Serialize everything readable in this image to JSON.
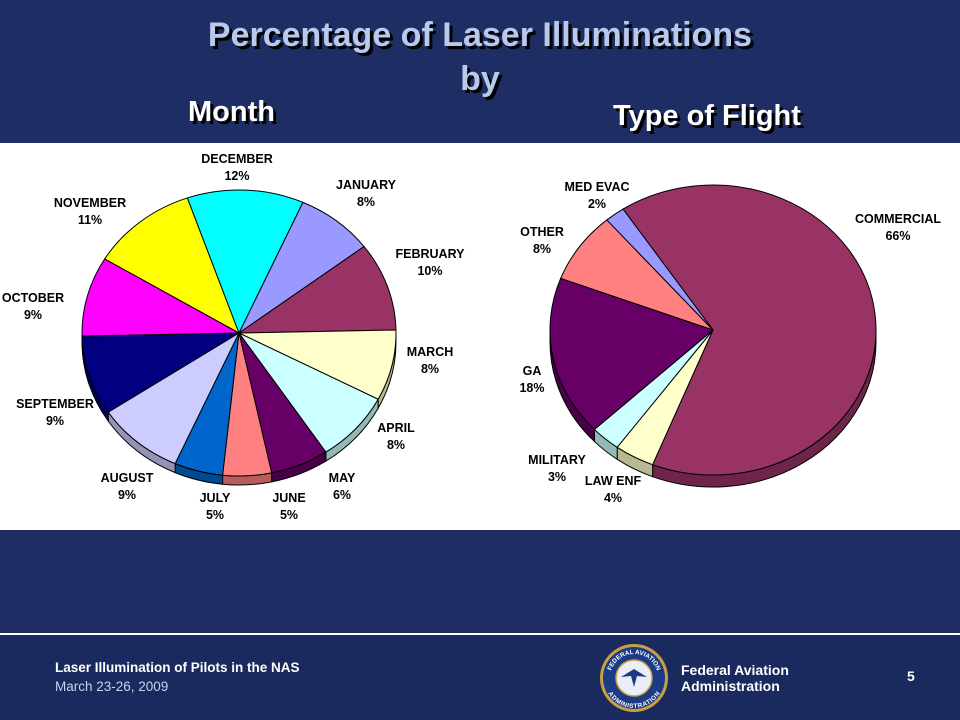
{
  "title_line1": "Percentage of Laser Illuminations",
  "title_line2": "by",
  "footer": {
    "presentation_title": "Laser Illumination  of Pilots in the NAS",
    "date": "March 23-26, 2009",
    "agency_line1": "Federal Aviation",
    "agency_line2": "Administration",
    "page_number": "5",
    "seal_text_top": "FEDERAL AVIATION",
    "seal_text_bottom": "ADMINISTRATION"
  },
  "chart_data": [
    {
      "type": "pie",
      "title": "Month",
      "slices": [
        {
          "label": "JANUARY",
          "value": 8,
          "pct_label": "8%",
          "color": "#9999ff"
        },
        {
          "label": "FEBRUARY",
          "value": 10,
          "pct_label": "10%",
          "color": "#993366"
        },
        {
          "label": "MARCH",
          "value": 8,
          "pct_label": "8%",
          "color": "#ffffcc"
        },
        {
          "label": "APRIL",
          "value": 8,
          "pct_label": "8%",
          "color": "#ccffff"
        },
        {
          "label": "MAY",
          "value": 6,
          "pct_label": "6%",
          "color": "#660066"
        },
        {
          "label": "JUNE",
          "value": 5,
          "pct_label": "5%",
          "color": "#ff8080"
        },
        {
          "label": "JULY",
          "value": 5,
          "pct_label": "5%",
          "color": "#0066cc"
        },
        {
          "label": "AUGUST",
          "value": 9,
          "pct_label": "9%",
          "color": "#ccccff"
        },
        {
          "label": "SEPTEMBER",
          "value": 9,
          "pct_label": "9%",
          "color": "#000080"
        },
        {
          "label": "OCTOBER",
          "value": 9,
          "pct_label": "9%",
          "color": "#ff00ff"
        },
        {
          "label": "NOVEMBER",
          "value": 11,
          "pct_label": "11%",
          "color": "#ffff00"
        },
        {
          "label": "DECEMBER",
          "value": 12,
          "pct_label": "12%",
          "color": "#00ffff"
        }
      ]
    },
    {
      "type": "pie",
      "title": "Type of Flight",
      "slices": [
        {
          "label": "COMMERCIAL",
          "value": 66,
          "pct_label": "66%",
          "color": "#993366"
        },
        {
          "label": "LAW ENF",
          "value": 4,
          "pct_label": "4%",
          "color": "#ffffcc"
        },
        {
          "label": "MILITARY",
          "value": 3,
          "pct_label": "3%",
          "color": "#ccffff"
        },
        {
          "label": "GA",
          "value": 18,
          "pct_label": "18%",
          "color": "#660066"
        },
        {
          "label": "OTHER",
          "value": 8,
          "pct_label": "8%",
          "color": "#ff8080"
        },
        {
          "label": "MED EVAC",
          "value": 2,
          "pct_label": "2%",
          "color": "#9999ff"
        }
      ]
    }
  ]
}
